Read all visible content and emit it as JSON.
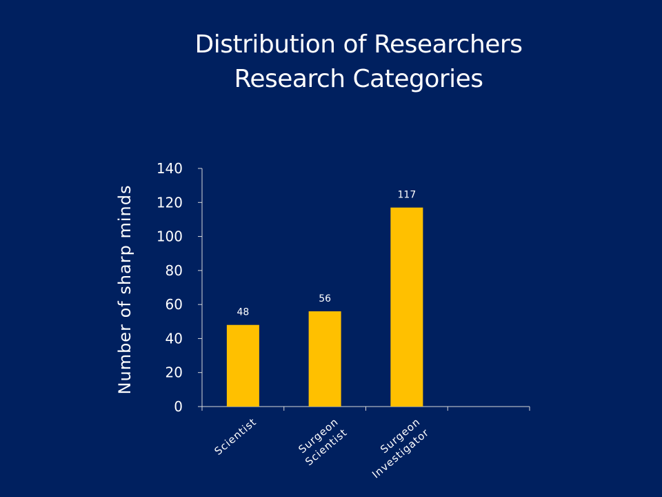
{
  "slide": {
    "title_line1": "Distribution of Researchers",
    "title_line2": "Research Categories"
  },
  "colors": {
    "background": "#00205F",
    "bar": "#FFC000",
    "text": "#FFFFFF",
    "axis": "#D9D9D9"
  },
  "chart_data": {
    "type": "bar",
    "title": "Distribution of Researchers Research Categories",
    "ylabel": "Number of sharp minds",
    "xlabel": "",
    "categories": [
      [
        "Scientist"
      ],
      [
        "Surgeon",
        "Scientist"
      ],
      [
        "Surgeon",
        "Investigator"
      ],
      [
        ""
      ]
    ],
    "values": [
      48,
      56,
      117,
      null
    ],
    "data_labels": [
      "48",
      "56",
      "117",
      ""
    ],
    "ylim": [
      0,
      140
    ],
    "yticks": [
      0,
      20,
      40,
      60,
      80,
      100,
      120,
      140
    ],
    "grid": false,
    "legend": "none"
  }
}
